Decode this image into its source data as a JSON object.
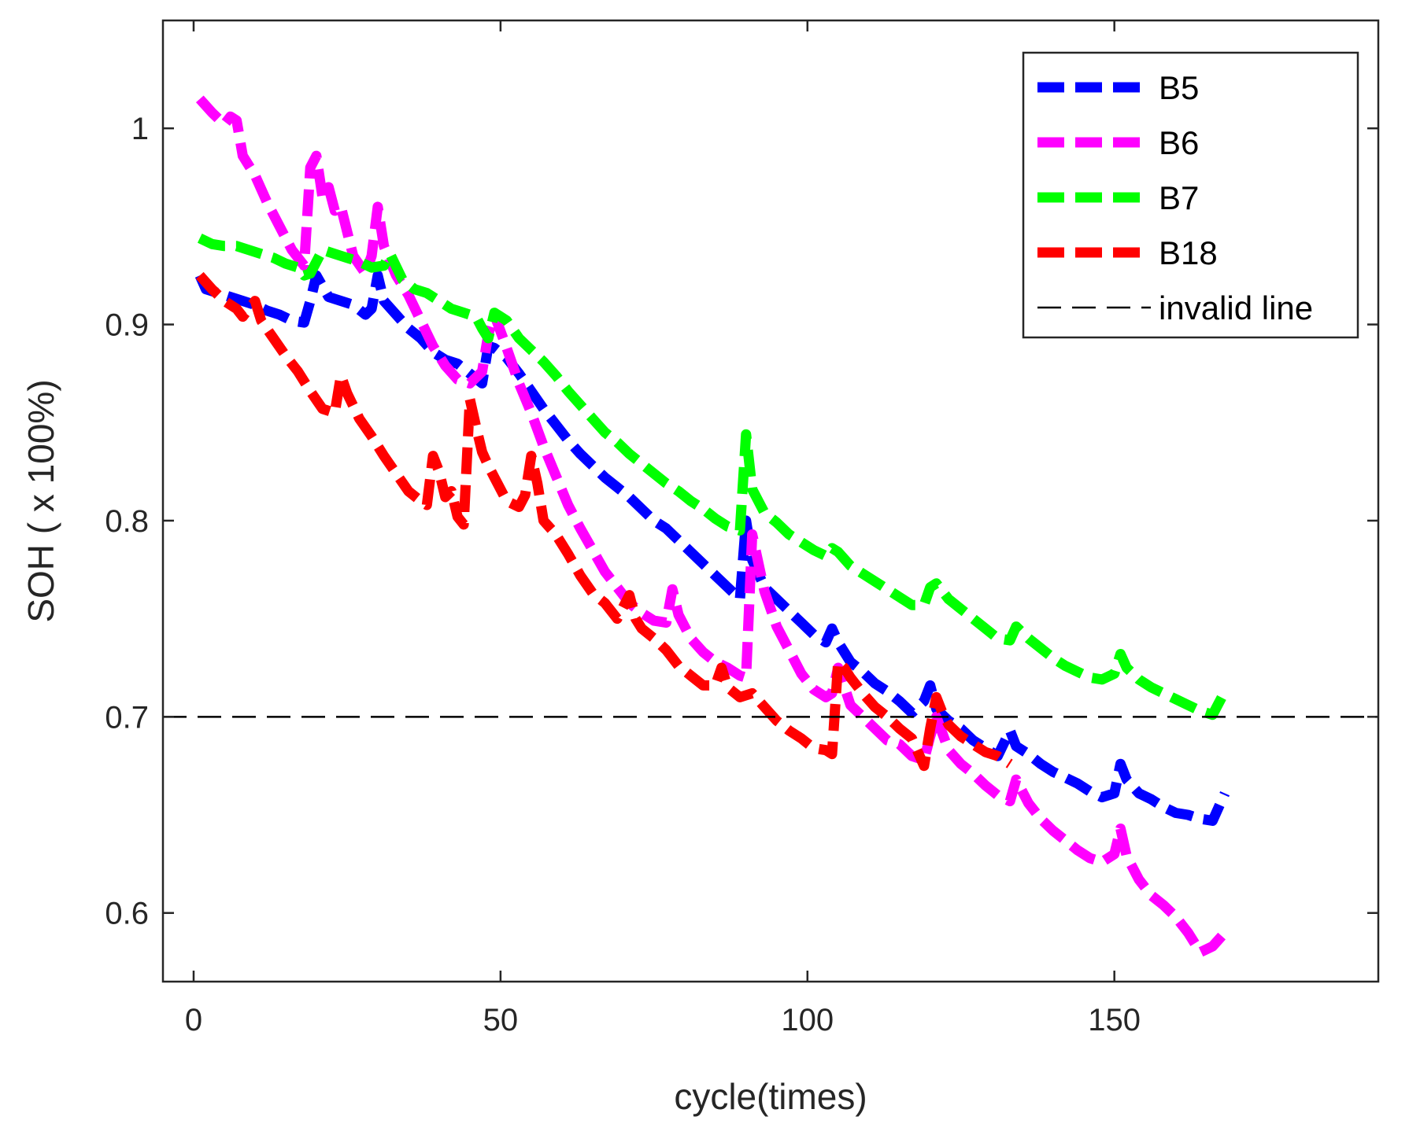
{
  "chart_data": {
    "type": "line",
    "title": "",
    "xlabel": "cycle(times)",
    "ylabel": "SOH ( x 100%)",
    "xlim": [
      -5,
      193
    ],
    "ylim": [
      0.565,
      1.055
    ],
    "xticks": [
      0,
      50,
      100,
      150
    ],
    "xtick_labels": [
      "0",
      "50",
      "100",
      "150"
    ],
    "yticks": [
      0.6,
      0.7,
      0.8,
      0.9,
      1.0
    ],
    "ytick_labels": [
      "0.6",
      "0.7",
      "0.8",
      "0.9",
      "1"
    ],
    "grid": false,
    "legend_position": "top-right",
    "reference_line": {
      "name": "invalid line",
      "y": 0.7,
      "color": "#000000"
    },
    "series": [
      {
        "name": "B5",
        "color": "#0000FF",
        "x": [
          1,
          2,
          4,
          6,
          8,
          10,
          12,
          14,
          16,
          18,
          19,
          20,
          22,
          24,
          26,
          28,
          29,
          30,
          31,
          33,
          35,
          37,
          39,
          41,
          43,
          45,
          47,
          48,
          49,
          51,
          53,
          55,
          57,
          59,
          61,
          63,
          65,
          67,
          69,
          71,
          73,
          75,
          77,
          79,
          81,
          83,
          85,
          87,
          89,
          90,
          91,
          93,
          95,
          97,
          99,
          101,
          103,
          104,
          105,
          107,
          109,
          111,
          113,
          115,
          117,
          119,
          120,
          121,
          123,
          125,
          127,
          129,
          131,
          133,
          134,
          136,
          138,
          140,
          142,
          144,
          146,
          148,
          150,
          151,
          152,
          154,
          156,
          158,
          160,
          162,
          164,
          166,
          168
        ],
        "values": [
          0.925,
          0.918,
          0.916,
          0.914,
          0.912,
          0.91,
          0.907,
          0.905,
          0.902,
          0.901,
          0.912,
          0.925,
          0.914,
          0.912,
          0.91,
          0.905,
          0.908,
          0.925,
          0.912,
          0.905,
          0.898,
          0.893,
          0.886,
          0.882,
          0.88,
          0.875,
          0.87,
          0.889,
          0.888,
          0.883,
          0.875,
          0.866,
          0.857,
          0.849,
          0.841,
          0.834,
          0.828,
          0.822,
          0.817,
          0.812,
          0.806,
          0.8,
          0.796,
          0.79,
          0.784,
          0.778,
          0.772,
          0.766,
          0.76,
          0.8,
          0.78,
          0.766,
          0.76,
          0.754,
          0.748,
          0.742,
          0.738,
          0.745,
          0.738,
          0.728,
          0.723,
          0.717,
          0.713,
          0.708,
          0.702,
          0.708,
          0.716,
          0.704,
          0.698,
          0.694,
          0.688,
          0.684,
          0.68,
          0.693,
          0.685,
          0.681,
          0.676,
          0.672,
          0.669,
          0.666,
          0.662,
          0.659,
          0.661,
          0.676,
          0.668,
          0.661,
          0.658,
          0.654,
          0.651,
          0.65,
          0.648,
          0.647,
          0.661
        ]
      },
      {
        "name": "B6",
        "color": "#FF00FF",
        "x": [
          1,
          3,
          5,
          6,
          7,
          8,
          10,
          12,
          14,
          16,
          18,
          19,
          20,
          21,
          22,
          23,
          24,
          26,
          28,
          29,
          30,
          31,
          33,
          35,
          37,
          39,
          41,
          43,
          45,
          47,
          48,
          49,
          51,
          53,
          55,
          57,
          59,
          61,
          63,
          65,
          67,
          69,
          71,
          73,
          75,
          77,
          78,
          79,
          81,
          83,
          85,
          87,
          89,
          90,
          91,
          93,
          95,
          97,
          99,
          101,
          103,
          104,
          105,
          107,
          109,
          111,
          113,
          115,
          117,
          119,
          120,
          121,
          123,
          125,
          127,
          129,
          131,
          133,
          134,
          136,
          138,
          140,
          142,
          144,
          146,
          148,
          150,
          151,
          152,
          154,
          156,
          158,
          160,
          162,
          164,
          166,
          168
        ],
        "values": [
          1.015,
          1.008,
          1.002,
          1.006,
          1.004,
          0.986,
          0.976,
          0.962,
          0.95,
          0.938,
          0.93,
          0.98,
          0.986,
          0.965,
          0.97,
          0.958,
          0.96,
          0.935,
          0.926,
          0.935,
          0.96,
          0.94,
          0.925,
          0.915,
          0.902,
          0.889,
          0.879,
          0.872,
          0.87,
          0.876,
          0.895,
          0.905,
          0.888,
          0.87,
          0.855,
          0.838,
          0.823,
          0.808,
          0.796,
          0.785,
          0.774,
          0.766,
          0.758,
          0.753,
          0.749,
          0.748,
          0.765,
          0.752,
          0.74,
          0.733,
          0.728,
          0.725,
          0.721,
          0.72,
          0.793,
          0.764,
          0.746,
          0.734,
          0.722,
          0.714,
          0.71,
          0.712,
          0.725,
          0.706,
          0.7,
          0.694,
          0.688,
          0.686,
          0.68,
          0.678,
          0.69,
          0.7,
          0.683,
          0.676,
          0.671,
          0.665,
          0.66,
          0.657,
          0.668,
          0.656,
          0.648,
          0.642,
          0.637,
          0.632,
          0.628,
          0.626,
          0.63,
          0.643,
          0.629,
          0.617,
          0.609,
          0.604,
          0.598,
          0.59,
          0.58,
          0.583,
          0.59
        ]
      },
      {
        "name": "B7",
        "color": "#00FF00",
        "x": [
          1,
          3,
          5,
          7,
          9,
          11,
          13,
          15,
          17,
          18,
          19,
          21,
          23,
          25,
          27,
          29,
          31,
          32,
          34,
          36,
          38,
          40,
          42,
          44,
          46,
          47,
          48,
          49,
          51,
          53,
          55,
          57,
          59,
          61,
          63,
          65,
          67,
          69,
          71,
          73,
          75,
          77,
          79,
          81,
          83,
          85,
          87,
          89,
          90,
          91,
          93,
          95,
          97,
          99,
          101,
          103,
          104,
          105,
          107,
          109,
          111,
          113,
          115,
          117,
          119,
          120,
          121,
          123,
          125,
          127,
          129,
          131,
          133,
          134,
          136,
          138,
          140,
          142,
          144,
          146,
          148,
          150,
          151,
          152,
          154,
          156,
          158,
          160,
          162,
          164,
          166,
          168
        ],
        "values": [
          0.944,
          0.941,
          0.94,
          0.94,
          0.938,
          0.936,
          0.934,
          0.931,
          0.929,
          0.925,
          0.926,
          0.938,
          0.936,
          0.934,
          0.932,
          0.929,
          0.93,
          0.936,
          0.923,
          0.918,
          0.916,
          0.912,
          0.908,
          0.906,
          0.904,
          0.898,
          0.893,
          0.906,
          0.902,
          0.893,
          0.887,
          0.881,
          0.874,
          0.866,
          0.859,
          0.852,
          0.845,
          0.84,
          0.834,
          0.829,
          0.824,
          0.819,
          0.815,
          0.81,
          0.806,
          0.801,
          0.797,
          0.795,
          0.844,
          0.816,
          0.804,
          0.799,
          0.793,
          0.789,
          0.785,
          0.782,
          0.786,
          0.784,
          0.777,
          0.773,
          0.769,
          0.765,
          0.761,
          0.757,
          0.757,
          0.766,
          0.768,
          0.76,
          0.755,
          0.75,
          0.745,
          0.74,
          0.739,
          0.746,
          0.74,
          0.735,
          0.73,
          0.726,
          0.723,
          0.72,
          0.719,
          0.722,
          0.732,
          0.725,
          0.719,
          0.715,
          0.712,
          0.709,
          0.706,
          0.703,
          0.701,
          0.713
        ]
      },
      {
        "name": "B18",
        "color": "#FF0000",
        "x": [
          1,
          3,
          5,
          7,
          8,
          9,
          10,
          11,
          13,
          15,
          17,
          19,
          21,
          23,
          24,
          25,
          27,
          29,
          31,
          33,
          35,
          37,
          38,
          39,
          40,
          41,
          42,
          43,
          44,
          45,
          46,
          47,
          48,
          49,
          51,
          53,
          54,
          55,
          56,
          57,
          59,
          61,
          63,
          65,
          67,
          69,
          71,
          72,
          73,
          75,
          77,
          79,
          81,
          83,
          85,
          86,
          87,
          89,
          91,
          93,
          95,
          97,
          99,
          101,
          103,
          104,
          105,
          106,
          107,
          109,
          111,
          113,
          115,
          117,
          119,
          120,
          121,
          122,
          123,
          125,
          127,
          129,
          131,
          133
        ],
        "values": [
          0.925,
          0.918,
          0.912,
          0.908,
          0.904,
          0.908,
          0.912,
          0.902,
          0.893,
          0.884,
          0.876,
          0.866,
          0.857,
          0.855,
          0.874,
          0.865,
          0.852,
          0.843,
          0.833,
          0.824,
          0.815,
          0.81,
          0.808,
          0.833,
          0.825,
          0.812,
          0.815,
          0.802,
          0.798,
          0.862,
          0.848,
          0.835,
          0.828,
          0.822,
          0.81,
          0.807,
          0.813,
          0.833,
          0.819,
          0.8,
          0.793,
          0.783,
          0.772,
          0.763,
          0.758,
          0.75,
          0.762,
          0.75,
          0.745,
          0.74,
          0.734,
          0.726,
          0.721,
          0.716,
          0.716,
          0.725,
          0.715,
          0.71,
          0.712,
          0.705,
          0.698,
          0.693,
          0.689,
          0.684,
          0.683,
          0.681,
          0.728,
          0.725,
          0.72,
          0.712,
          0.705,
          0.7,
          0.694,
          0.689,
          0.675,
          0.694,
          0.71,
          0.702,
          0.696,
          0.69,
          0.686,
          0.682,
          0.68,
          0.676
        ]
      }
    ]
  }
}
